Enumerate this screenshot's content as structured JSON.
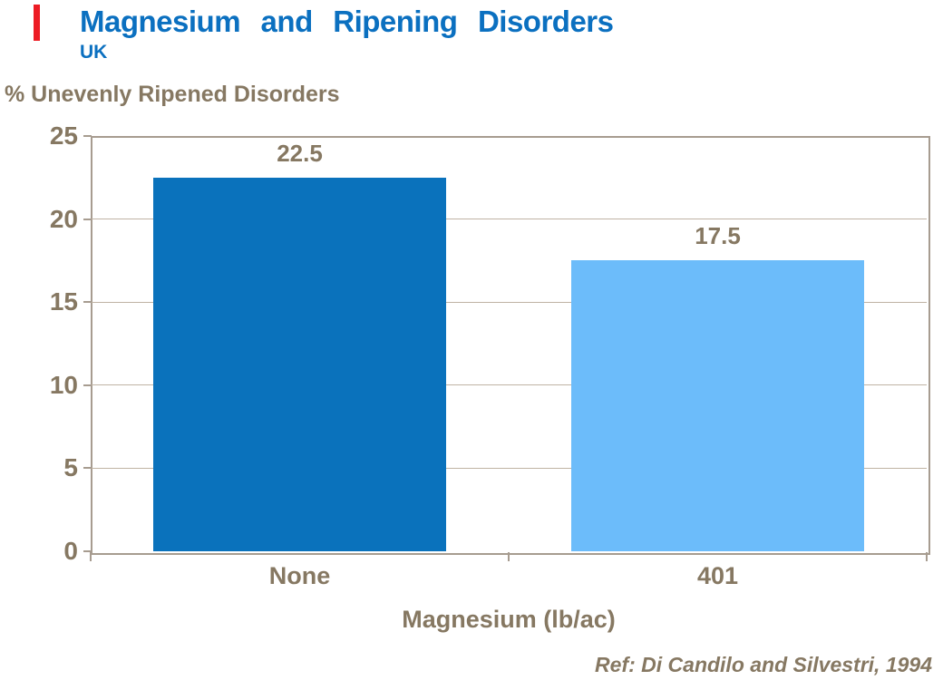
{
  "slide": {
    "background_color": "#FFFFFF",
    "accent_bar_color": "#ED1C24"
  },
  "header": {
    "title": "Magnesium and Ripening Disorders",
    "subtitle": "UK",
    "title_color": "#0B70C0"
  },
  "chart_data": {
    "type": "bar",
    "title": "Magnesium and Ripening Disorders",
    "subtitle": "UK",
    "categories": [
      "None",
      "401"
    ],
    "values": [
      22.5,
      17.5
    ],
    "data_labels": [
      "22.5",
      "17.5"
    ],
    "bar_colors": [
      "#0A72BC",
      "#6CBCFA"
    ],
    "xlabel": "Magnesium (lb/ac)",
    "ylabel": "% Unevenly Ripened Disorders",
    "ylim": [
      0,
      25
    ],
    "yticks": [
      0,
      5,
      10,
      15,
      20,
      25
    ],
    "grid": "horizontal",
    "legend": "none",
    "axis_line_color": "#A79C90",
    "gridline_color": "#BFB3A4",
    "label_color": "#867862"
  },
  "footer": {
    "reference": "Ref: Di Candilo and Silvestri, 1994"
  }
}
